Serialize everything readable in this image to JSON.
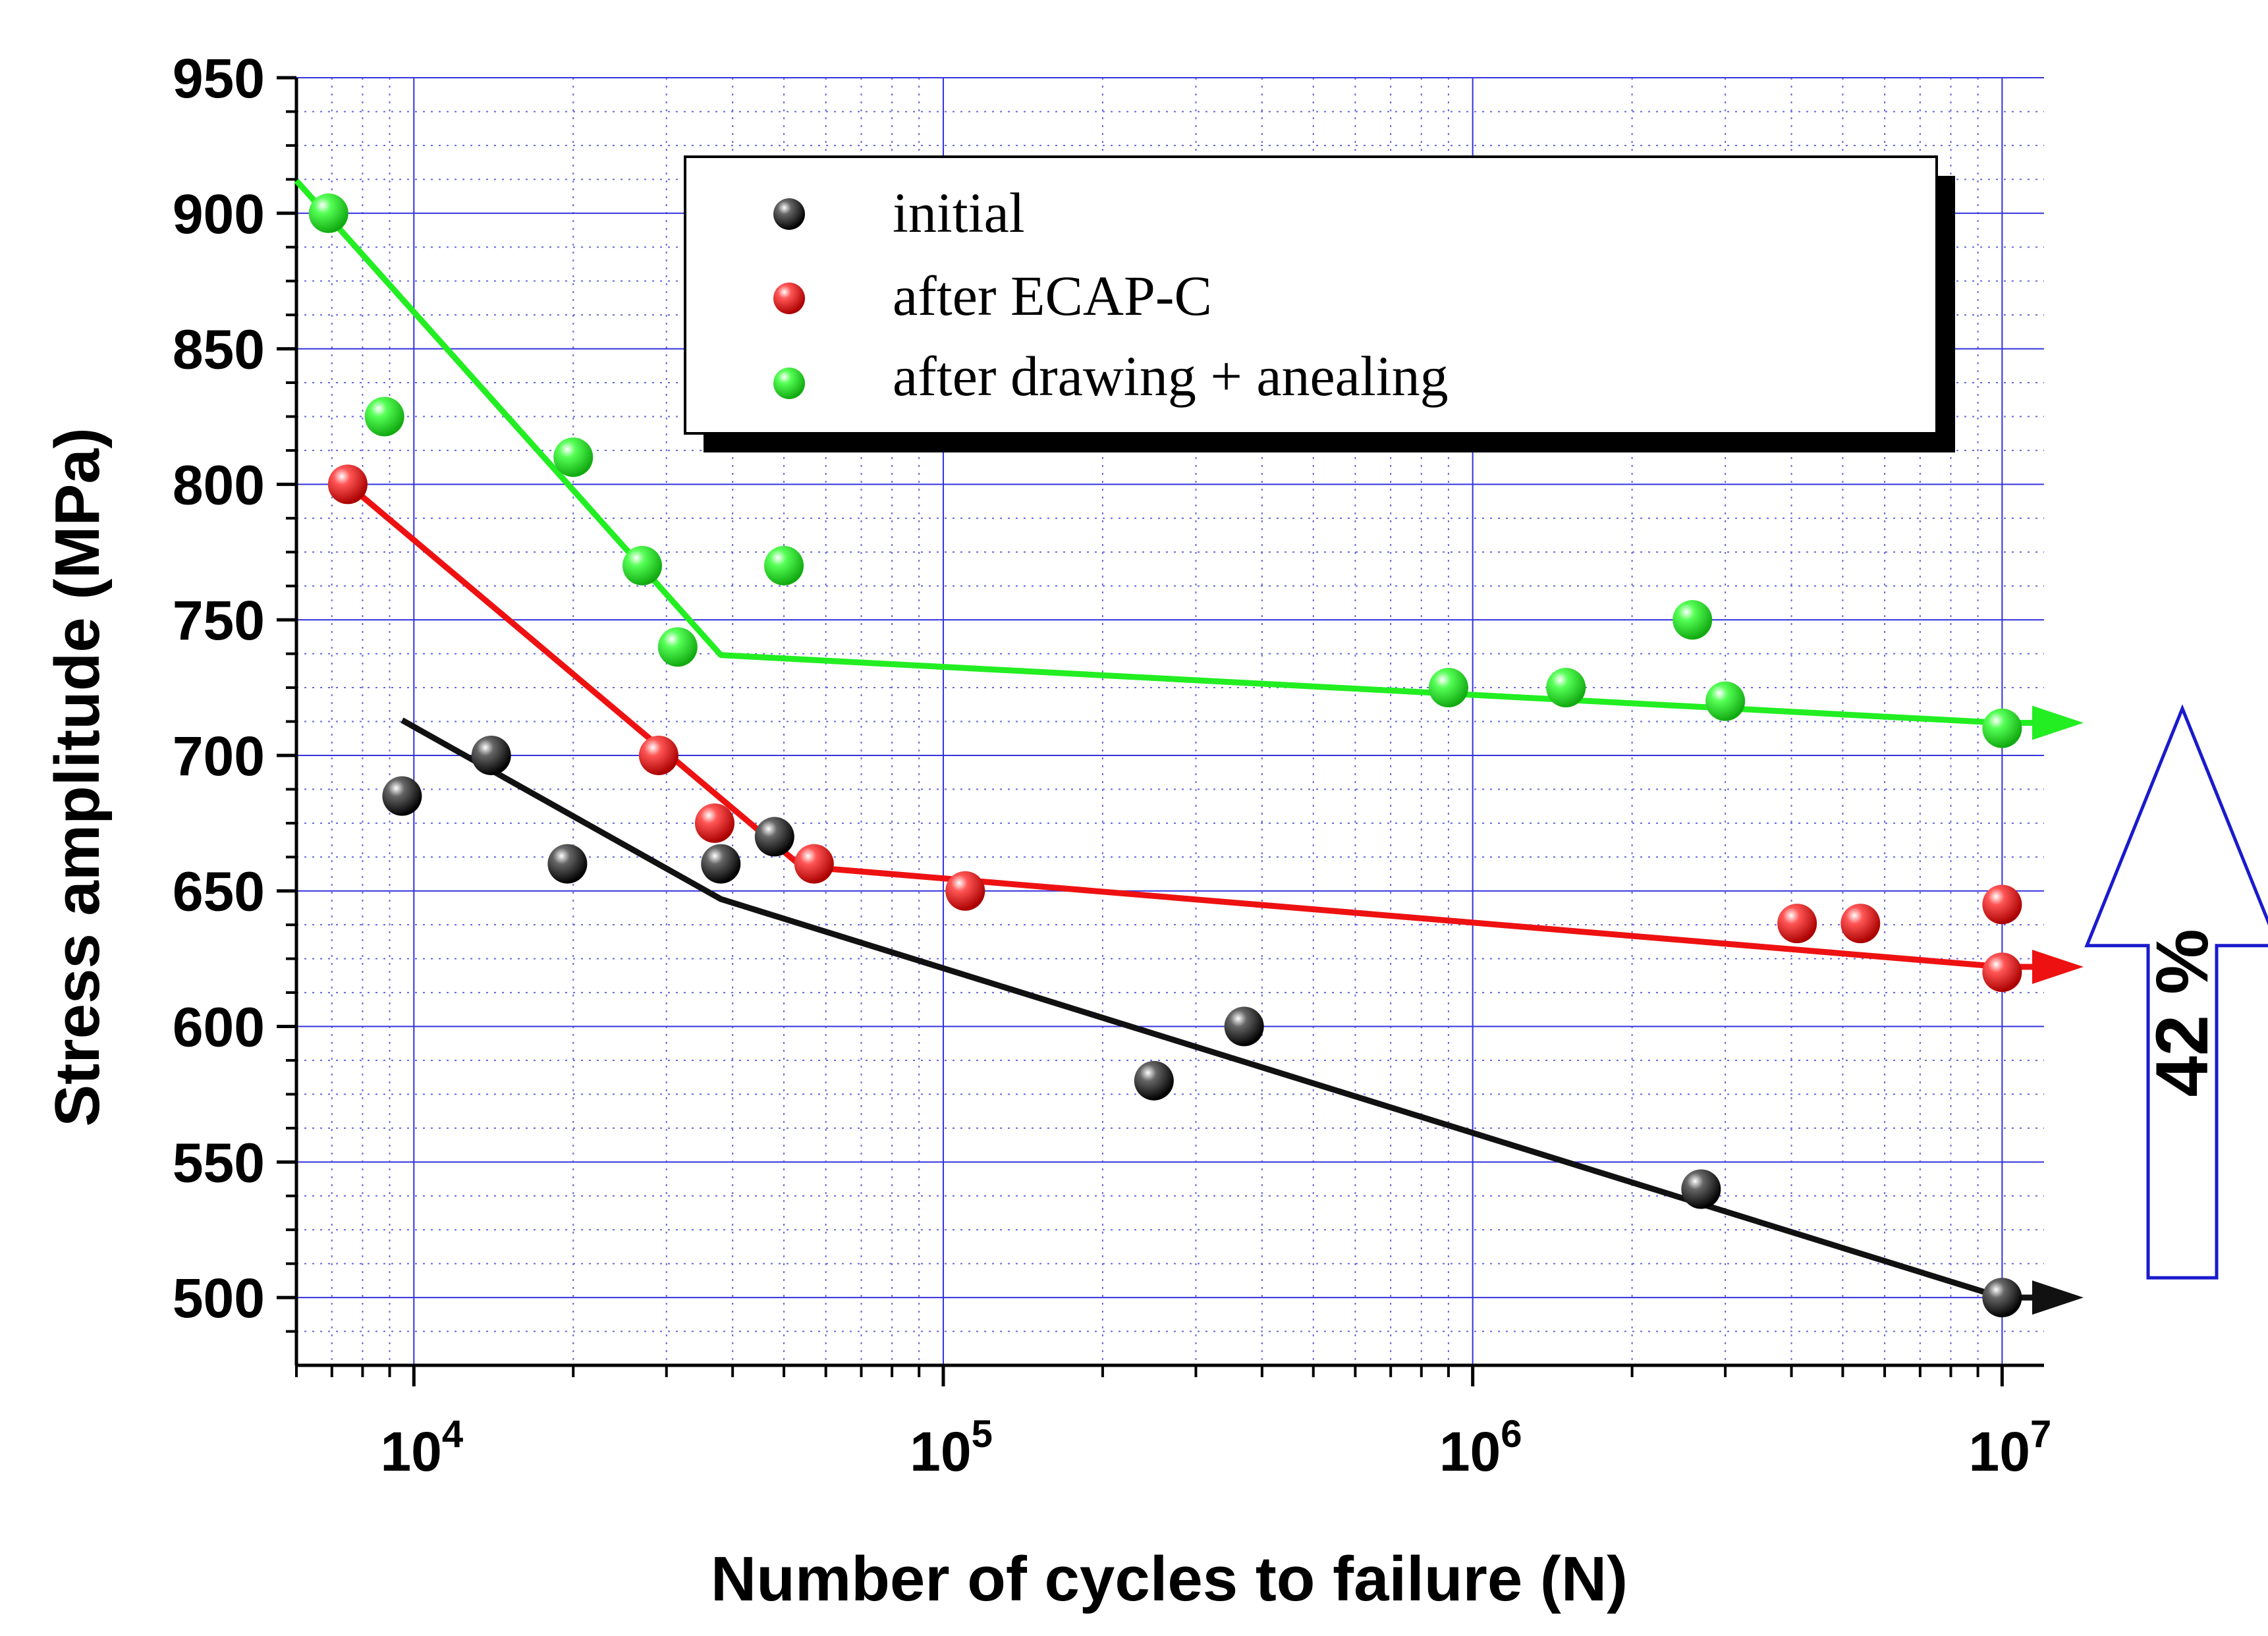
{
  "chart_data": {
    "type": "scatter",
    "xscale": "log",
    "xlim": [
      6000,
      12000000
    ],
    "ylim": [
      475,
      950
    ],
    "xlabel": "Number of cycles to failure (N)",
    "ylabel": "Stress amplitude (MPa)",
    "grid": true,
    "legend_position": "top-center",
    "y_ticks": [
      500,
      550,
      600,
      650,
      700,
      750,
      800,
      850,
      900,
      950
    ],
    "y_tick_labels": [
      "500",
      "550",
      "600",
      "650",
      "700",
      "750",
      "800",
      "850",
      "900",
      "950"
    ],
    "x_ticks": [
      10000,
      100000,
      1000000,
      10000000
    ],
    "x_tick_labels": [
      {
        "base": "10",
        "exp": "4"
      },
      {
        "base": "10",
        "exp": "5"
      },
      {
        "base": "10",
        "exp": "6"
      },
      {
        "base": "10",
        "exp": "7"
      }
    ],
    "series": [
      {
        "name": "initial",
        "color": "#111111",
        "points": [
          [
            9500,
            685
          ],
          [
            14000,
            700
          ],
          [
            19500,
            660
          ],
          [
            38000,
            660
          ],
          [
            48000,
            670
          ],
          [
            250000,
            580
          ],
          [
            370000,
            600
          ],
          [
            2700000,
            540
          ],
          [
            10000000,
            500
          ]
        ],
        "fit_line": [
          [
            9500,
            713
          ],
          [
            38000,
            647
          ],
          [
            10000000,
            500
          ]
        ],
        "arrow_to": [
          12000000,
          500
        ]
      },
      {
        "name": "after ECAP-C",
        "color": "#ee1111",
        "points": [
          [
            7500,
            800
          ],
          [
            29000,
            700
          ],
          [
            37000,
            675
          ],
          [
            57000,
            660
          ],
          [
            110000,
            650
          ],
          [
            4100000,
            638
          ],
          [
            5400000,
            638
          ],
          [
            10000000,
            645
          ],
          [
            10000000,
            620
          ]
        ],
        "fit_line": [
          [
            7500,
            800
          ],
          [
            54000,
            659
          ],
          [
            10000000,
            622
          ]
        ],
        "arrow_to": [
          12000000,
          622
        ]
      },
      {
        "name": "after drawing + anealing",
        "color": "#22ee22",
        "points": [
          [
            6900,
            900
          ],
          [
            8800,
            825
          ],
          [
            20000,
            810
          ],
          [
            27000,
            770
          ],
          [
            31500,
            740
          ],
          [
            50000,
            770
          ],
          [
            900000,
            725
          ],
          [
            1500000,
            725
          ],
          [
            2600000,
            750
          ],
          [
            3000000,
            720
          ],
          [
            10000000,
            710
          ]
        ],
        "fit_line": [
          [
            6000,
            912
          ],
          [
            38000,
            737
          ],
          [
            10000000,
            712
          ]
        ],
        "arrow_to": [
          12000000,
          712
        ]
      }
    ],
    "annotation": {
      "text": "42 %",
      "arrow_from_value": 500,
      "arrow_to_value": 710
    }
  }
}
